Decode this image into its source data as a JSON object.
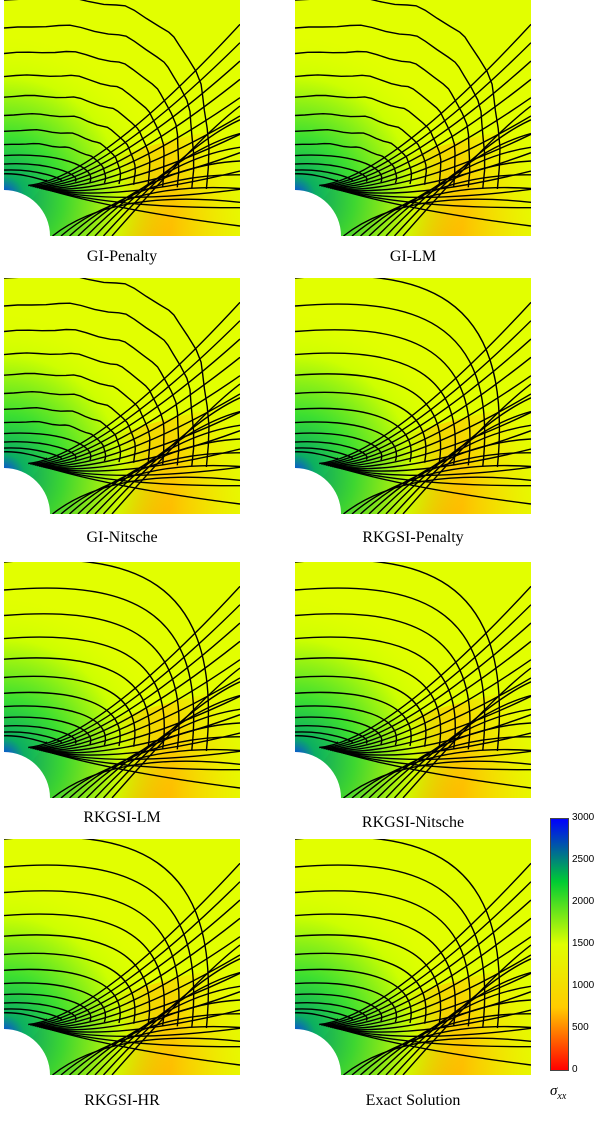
{
  "panels": [
    {
      "title": "GI-Penalty",
      "noisy": true
    },
    {
      "title": "GI-LM",
      "noisy": true
    },
    {
      "title": "GI-Nitsche",
      "noisy": true
    },
    {
      "title": "RKGSI-Penalty",
      "noisy": false
    },
    {
      "title": "RKGSI-LM",
      "noisy": false
    },
    {
      "title": "RKGSI-Nitsche",
      "noisy": false
    },
    {
      "title": "RKGSI-HR",
      "noisy": false
    },
    {
      "title": "Exact Solution",
      "noisy": false
    }
  ],
  "colorbar": {
    "ticks": [
      "3000",
      "2500",
      "2000",
      "1500",
      "1000",
      "500",
      "0"
    ],
    "label_main": "σ",
    "label_sub": "xx",
    "colors": [
      "#0000ff",
      "#00cc33",
      "#dfff00",
      "#ffcc00",
      "#ff0000"
    ]
  }
}
